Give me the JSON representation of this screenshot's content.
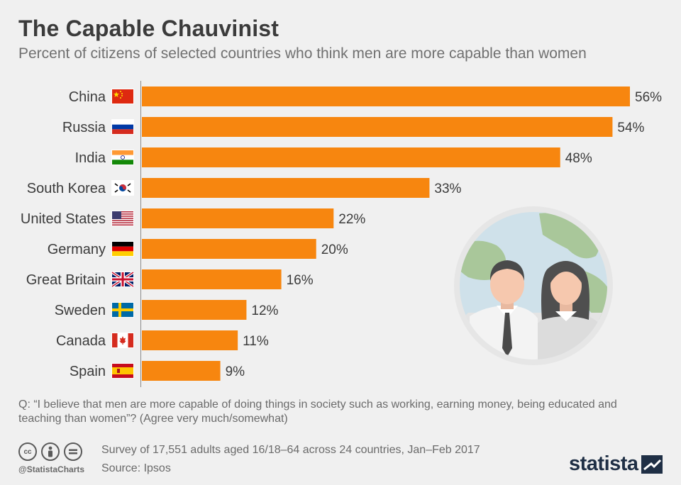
{
  "header": {
    "title": "The Capable Chauvinist",
    "subtitle": "Percent of citizens of selected countries who think men are more capable than women"
  },
  "chart_data": {
    "type": "bar",
    "orientation": "horizontal",
    "categories": [
      "China",
      "Russia",
      "India",
      "South Korea",
      "United States",
      "Germany",
      "Great Britain",
      "Sweden",
      "Canada",
      "Spain"
    ],
    "values": [
      56,
      54,
      48,
      33,
      22,
      20,
      16,
      12,
      11,
      9
    ],
    "value_labels": [
      "56%",
      "54%",
      "48%",
      "33%",
      "22%",
      "20%",
      "16%",
      "12%",
      "11%",
      "9%"
    ],
    "flags": [
      "flag-china-icon",
      "flag-russia-icon",
      "flag-india-icon",
      "flag-south-korea-icon",
      "flag-united-states-icon",
      "flag-germany-icon",
      "flag-great-britain-icon",
      "flag-sweden-icon",
      "flag-canada-icon",
      "flag-spain-icon"
    ],
    "xlim": [
      0,
      56
    ],
    "grid": false,
    "bar_color": "#f7860f"
  },
  "footer": {
    "question": "Q: “I believe that men are more capable of doing things in society such as working, earning money, being educated and teaching than women”? (Agree very much/somewhat)",
    "survey": "Survey of 17,551 adults aged 16/18–64 across 24 countries, Jan–Feb 2017",
    "source": "Source: Ipsos",
    "handle": "@StatistaCharts",
    "brand": "statista",
    "license_icons": [
      "cc-icon",
      "by-icon",
      "nd-icon"
    ]
  },
  "colors": {
    "background": "#f0f0f0",
    "bar": "#f7860f",
    "title": "#3b3b3b",
    "brand": "#1f2f45"
  }
}
